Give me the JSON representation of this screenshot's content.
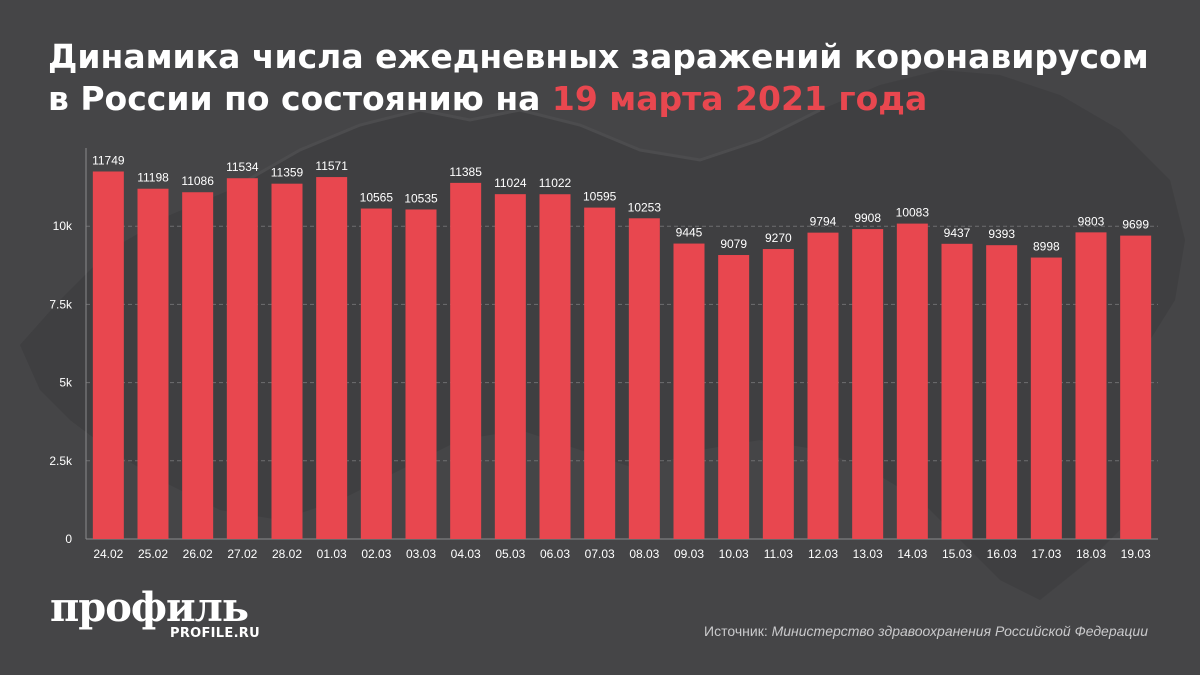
{
  "title": {
    "main": "Динамика числа ежедневных заражений коронавирусом в России по состоянию на ",
    "accent": "19 марта 2021 года"
  },
  "colors": {
    "background": "#454547",
    "bar": "#e8474f",
    "accent": "#e8474f",
    "map": "#3d3d3f",
    "grid": "#6e6e70"
  },
  "chart_data": {
    "type": "bar",
    "categories": [
      "24.02",
      "25.02",
      "26.02",
      "27.02",
      "28.02",
      "01.03",
      "02.03",
      "03.03",
      "04.03",
      "05.03",
      "06.03",
      "07.03",
      "08.03",
      "09.03",
      "10.03",
      "11.03",
      "12.03",
      "13.03",
      "14.03",
      "15.03",
      "16.03",
      "17.03",
      "18.03",
      "19.03"
    ],
    "values": [
      11749,
      11198,
      11086,
      11534,
      11359,
      11571,
      10565,
      10535,
      11385,
      11024,
      11022,
      10595,
      10253,
      9445,
      9079,
      9270,
      9794,
      9908,
      10083,
      9437,
      9393,
      8998,
      9803,
      9699
    ],
    "yticks": [
      0,
      2500,
      5000,
      7500,
      10000
    ],
    "ytick_labels": [
      "0",
      "2.5k",
      "5k",
      "7.5k",
      "10k"
    ],
    "ylim": [
      0,
      12500
    ],
    "grid": true,
    "legend": "none"
  },
  "logo": {
    "main": "профиль",
    "sub": "PROFILE.RU"
  },
  "source": {
    "prefix": "Источник: ",
    "body": "Министерство здравоохранения Российской Федерации"
  }
}
